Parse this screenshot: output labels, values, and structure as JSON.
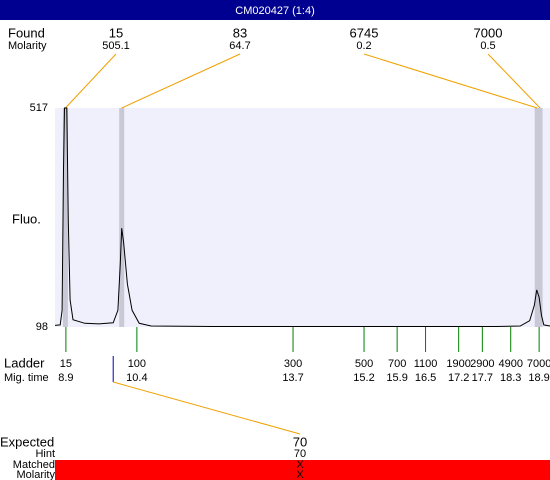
{
  "title_bar": "CM020427 (1:4)",
  "found": {
    "label": "Found",
    "sublabel": "Molarity",
    "peaks": [
      {
        "size": 15,
        "molarity": 505.1,
        "x": 8.89
      },
      {
        "size": 83,
        "molarity": 64.7,
        "x": 10.08
      },
      {
        "size": 6745,
        "molarity": 0.2,
        "x": 18.86
      },
      {
        "size": 7000,
        "molarity": 0.5,
        "x": 18.92
      }
    ]
  },
  "chart_data": {
    "type": "line",
    "ylabel": "Fluo.",
    "color": "#000000",
    "band_color": "#c8c8d6",
    "background": "#f0f0fc",
    "ylim": [
      98,
      517
    ],
    "yticks": [
      98,
      517
    ],
    "xlim": [
      8.67,
      19.13
    ],
    "x": [
      8.67,
      8.78,
      8.82,
      8.85,
      8.87,
      8.92,
      8.95,
      8.99,
      9.05,
      9.3,
      9.6,
      9.9,
      10.0,
      10.05,
      10.08,
      10.12,
      10.2,
      10.3,
      10.45,
      10.7,
      12,
      14,
      16,
      18,
      18.5,
      18.7,
      18.8,
      18.85,
      18.9,
      18.95,
      19.0,
      19.13
    ],
    "values": [
      101,
      102,
      130,
      400,
      517,
      517,
      300,
      150,
      112,
      105,
      104,
      106,
      130,
      220,
      287,
      260,
      180,
      130,
      105,
      100,
      99,
      99,
      99,
      99,
      100,
      110,
      140,
      169,
      155,
      120,
      102,
      100
    ]
  },
  "ladder": {
    "label": "Ladder",
    "sublabel": "Mig. time",
    "sizes": [
      15,
      100,
      300,
      500,
      700,
      1100,
      1900,
      2900,
      4900,
      7000
    ],
    "times": [
      8.9,
      10.4,
      13.7,
      15.2,
      15.9,
      16.5,
      17.2,
      17.7,
      18.3,
      18.9
    ]
  },
  "expected": {
    "label": "Expected",
    "value": 70,
    "x": 9.9,
    "hint_label": "Hint",
    "hint": 70,
    "matched_label": "Matched",
    "matched": "X",
    "molarity_label": "Molarity",
    "molarity": "X"
  }
}
